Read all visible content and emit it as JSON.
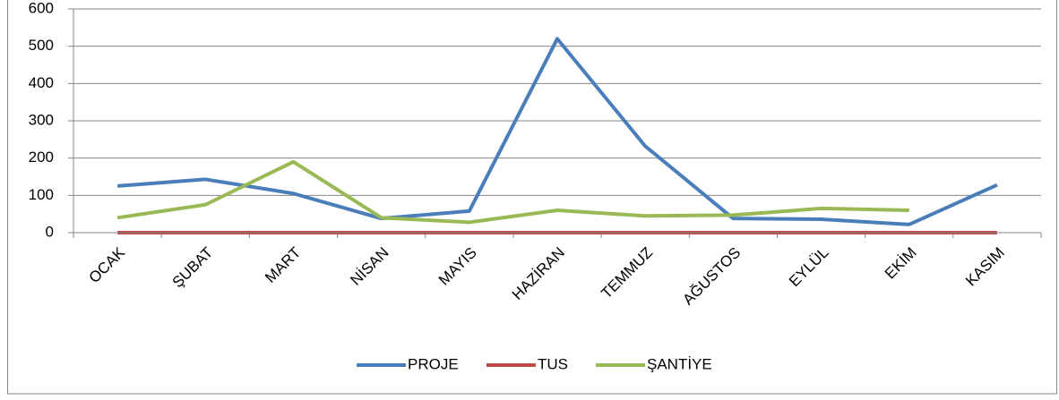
{
  "chart_data": {
    "type": "line",
    "categories": [
      "OCAK",
      "ŞUBAT",
      "MART",
      "NİSAN",
      "MAYIS",
      "HAZİRAN",
      "TEMMUZ",
      "AĞUSTOS",
      "EYLÜL",
      "EKİM",
      "KASIM"
    ],
    "series": [
      {
        "name": "PROJE",
        "color": "#4a7ebb",
        "values": [
          125,
          143,
          105,
          38,
          58,
          520,
          232,
          38,
          36,
          22,
          128
        ]
      },
      {
        "name": "TUS",
        "color": "#be4b48",
        "values": [
          0,
          0,
          0,
          0,
          0,
          0,
          0,
          0,
          0,
          0,
          0
        ]
      },
      {
        "name": "ŞANTİYE",
        "color": "#98b954",
        "values": [
          40,
          75,
          190,
          40,
          28,
          60,
          45,
          47,
          65,
          60,
          null
        ]
      }
    ],
    "ylim": [
      0,
      600
    ],
    "yticks": [
      0,
      100,
      200,
      300,
      400,
      500,
      600
    ],
    "grid": true,
    "legend": "bottom"
  }
}
